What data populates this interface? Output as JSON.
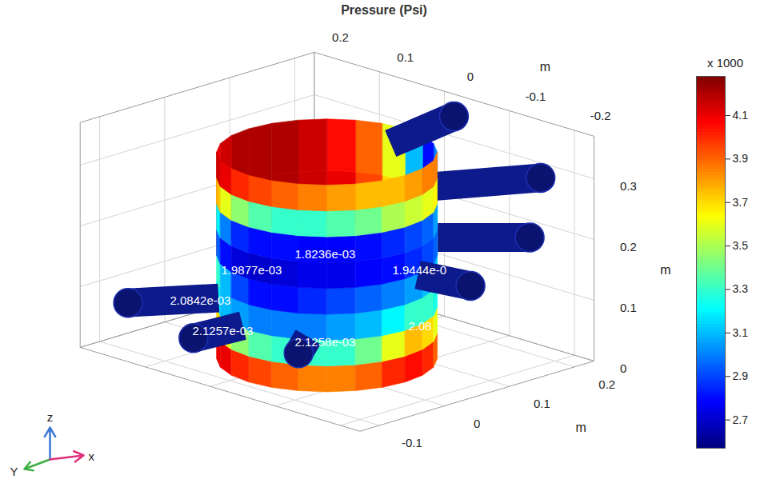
{
  "chart_data": {
    "type": "surface3d",
    "title": "Pressure (Psi)",
    "xlabel": "m",
    "ylabel": "m",
    "zlabel": "m",
    "xlim": [
      -0.13,
      0.23
    ],
    "xticks": [
      -0.1,
      0,
      0.1,
      0.2
    ],
    "ylim": [
      -0.23,
      0.2
    ],
    "yticks": [
      -0.2,
      -0.1,
      0,
      0.1,
      0.2
    ],
    "zlim": [
      0,
      0.37
    ],
    "zticks": [
      0,
      0.1,
      0.2,
      0.3
    ],
    "colorbar": {
      "label": "x 1000",
      "lim": [
        2.57,
        4.28
      ],
      "ticks": [
        2.7,
        2.9,
        3.1,
        3.3,
        3.5,
        3.7,
        3.9,
        4.1
      ]
    },
    "surface": {
      "outer": {
        "angles": [
          135,
          150,
          165,
          180,
          195,
          210,
          225,
          240,
          255,
          270,
          285,
          300,
          315
        ],
        "heights": [
          0,
          0.0425,
          0.085,
          0.1275,
          0.17,
          0.2125,
          0.255,
          0.2975,
          0.34
        ],
        "values": [
          [
            4.1,
            4.1,
            4.0,
            3.95,
            3.9,
            3.85,
            3.85,
            3.9,
            4.0,
            4.05,
            4.0,
            3.9
          ],
          [
            3.7,
            3.6,
            3.45,
            3.35,
            3.3,
            3.3,
            3.3,
            3.4,
            3.6,
            3.75,
            3.7,
            3.6
          ],
          [
            3.2,
            3.1,
            3.05,
            3.0,
            3.0,
            3.0,
            3.05,
            3.1,
            3.2,
            3.3,
            3.3,
            3.25
          ],
          [
            3.3,
            3.1,
            2.9,
            2.8,
            2.8,
            2.85,
            2.9,
            2.95,
            3.0,
            3.05,
            3.1,
            3.1
          ],
          [
            2.95,
            2.8,
            2.72,
            2.7,
            2.72,
            2.75,
            2.75,
            2.78,
            2.8,
            2.85,
            2.9,
            2.95
          ],
          [
            3.2,
            3.0,
            2.85,
            2.8,
            2.8,
            2.78,
            2.78,
            2.8,
            2.85,
            2.9,
            2.95,
            3.05
          ],
          [
            3.75,
            3.6,
            3.45,
            3.35,
            3.3,
            3.3,
            3.35,
            3.4,
            3.5,
            3.55,
            3.6,
            3.65
          ],
          [
            4.15,
            4.1,
            4.0,
            3.95,
            3.9,
            3.85,
            3.8,
            3.75,
            3.75,
            3.8,
            3.85,
            3.85
          ]
        ]
      },
      "inner": {
        "angles": [
          -45,
          -30,
          -15,
          0,
          15,
          30,
          45,
          60,
          75,
          90,
          105,
          120,
          135
        ],
        "heights": [
          0.17,
          0.255,
          0.34
        ],
        "values": [
          [
            3.2,
            3.1,
            3.3,
            3.7,
            3.95,
            4.1,
            4.15,
            4.2,
            4.2,
            4.15,
            4.1,
            4.05
          ],
          [
            3.0,
            2.8,
            3.1,
            3.6,
            3.9,
            4.05,
            4.15,
            4.2,
            4.2,
            4.2,
            4.15,
            4.1
          ]
        ]
      }
    },
    "annotations": [
      "1.9877e-03",
      "1.8236e-03",
      "1.9444e-0",
      "2.0842e-03",
      "2.1257e-03",
      "2.1258e-03",
      "2.08"
    ],
    "axis_triad": [
      "Y",
      "z",
      "x"
    ]
  }
}
